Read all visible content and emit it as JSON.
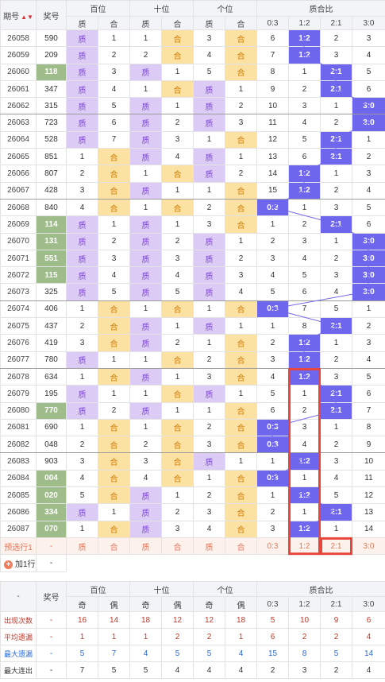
{
  "header": {
    "issue": "期号",
    "sort_icon": "▲▼",
    "prize": "奖号",
    "hundreds": "百位",
    "tens": "十位",
    "units": "个位",
    "ratio": "质合比",
    "zhi": "质",
    "he": "合",
    "ratios": [
      "0:3",
      "1:2",
      "2:1",
      "3:0"
    ]
  },
  "rows": [
    {
      "issue": "26058",
      "prize": "590",
      "h": [
        "质",
        "1"
      ],
      "t": [
        "1",
        "合"
      ],
      "u": [
        "3",
        "合"
      ],
      "r": [
        "6",
        "1:2",
        "2",
        "3"
      ],
      "hit": 1,
      "g": false
    },
    {
      "issue": "26059",
      "prize": "209",
      "h": [
        "质",
        "2"
      ],
      "t": [
        "2",
        "合"
      ],
      "u": [
        "4",
        "合"
      ],
      "r": [
        "7",
        "1:2",
        "3",
        "4"
      ],
      "hit": 1,
      "g": false
    },
    {
      "issue": "26060",
      "prize": "118",
      "h": [
        "质",
        "3"
      ],
      "t": [
        "质",
        "1"
      ],
      "u": [
        "5",
        "合"
      ],
      "r": [
        "8",
        "1",
        "2:1",
        "5"
      ],
      "hit": 2,
      "g": true
    },
    {
      "issue": "26061",
      "prize": "347",
      "h": [
        "质",
        "4"
      ],
      "t": [
        "1",
        "合"
      ],
      "u": [
        "质",
        "1"
      ],
      "r": [
        "9",
        "2",
        "2:1",
        "6"
      ],
      "hit": 2,
      "g": false
    },
    {
      "issue": "26062",
      "prize": "315",
      "h": [
        "质",
        "5"
      ],
      "t": [
        "质",
        "1"
      ],
      "u": [
        "质",
        "2"
      ],
      "r": [
        "10",
        "3",
        "1",
        "3:0"
      ],
      "hit": 3,
      "g": false
    },
    {
      "issue": "26063",
      "prize": "723",
      "h": [
        "质",
        "6"
      ],
      "t": [
        "质",
        "2"
      ],
      "u": [
        "质",
        "3"
      ],
      "r": [
        "11",
        "4",
        "2",
        "3:0"
      ],
      "hit": 3,
      "g": false
    },
    {
      "issue": "26064",
      "prize": "528",
      "h": [
        "质",
        "7"
      ],
      "t": [
        "质",
        "3"
      ],
      "u": [
        "1",
        "合"
      ],
      "r": [
        "12",
        "5",
        "2:1",
        "1"
      ],
      "hit": 2,
      "g": false
    },
    {
      "issue": "26065",
      "prize": "851",
      "h": [
        "1",
        "合"
      ],
      "t": [
        "质",
        "4"
      ],
      "u": [
        "质",
        "1"
      ],
      "r": [
        "13",
        "6",
        "2:1",
        "2"
      ],
      "hit": 2,
      "g": false
    },
    {
      "issue": "26066",
      "prize": "807",
      "h": [
        "2",
        "合"
      ],
      "t": [
        "1",
        "合"
      ],
      "u": [
        "质",
        "2"
      ],
      "r": [
        "14",
        "1:2",
        "1",
        "3"
      ],
      "hit": 1,
      "g": false
    },
    {
      "issue": "26067",
      "prize": "428",
      "h": [
        "3",
        "合"
      ],
      "t": [
        "质",
        "1"
      ],
      "u": [
        "1",
        "合"
      ],
      "r": [
        "15",
        "1:2",
        "2",
        "4"
      ],
      "hit": 1,
      "g": false
    },
    {
      "issue": "26068",
      "prize": "840",
      "h": [
        "4",
        "合"
      ],
      "t": [
        "1",
        "合"
      ],
      "u": [
        "2",
        "合"
      ],
      "r": [
        "0:3",
        "1",
        "3",
        "5"
      ],
      "hit": 0,
      "g": false
    },
    {
      "issue": "26069",
      "prize": "114",
      "h": [
        "质",
        "1"
      ],
      "t": [
        "质",
        "1"
      ],
      "u": [
        "3",
        "合"
      ],
      "r": [
        "1",
        "2",
        "2:1",
        "6"
      ],
      "hit": 2,
      "g": true
    },
    {
      "issue": "26070",
      "prize": "131",
      "h": [
        "质",
        "2"
      ],
      "t": [
        "质",
        "2"
      ],
      "u": [
        "质",
        "1"
      ],
      "r": [
        "2",
        "3",
        "1",
        "3:0"
      ],
      "hit": 3,
      "g": true
    },
    {
      "issue": "26071",
      "prize": "551",
      "h": [
        "质",
        "3"
      ],
      "t": [
        "质",
        "3"
      ],
      "u": [
        "质",
        "2"
      ],
      "r": [
        "3",
        "4",
        "2",
        "3:0"
      ],
      "hit": 3,
      "g": true
    },
    {
      "issue": "26072",
      "prize": "115",
      "h": [
        "质",
        "4"
      ],
      "t": [
        "质",
        "4"
      ],
      "u": [
        "质",
        "3"
      ],
      "r": [
        "4",
        "5",
        "3",
        "3:0"
      ],
      "hit": 3,
      "g": true
    },
    {
      "issue": "26073",
      "prize": "325",
      "h": [
        "质",
        "5"
      ],
      "t": [
        "质",
        "5"
      ],
      "u": [
        "质",
        "4"
      ],
      "r": [
        "5",
        "6",
        "4",
        "3:0"
      ],
      "hit": 3,
      "g": false
    },
    {
      "issue": "26074",
      "prize": "406",
      "h": [
        "1",
        "合"
      ],
      "t": [
        "1",
        "合"
      ],
      "u": [
        "1",
        "合"
      ],
      "r": [
        "0:3",
        "7",
        "5",
        "1"
      ],
      "hit": 0,
      "g": false
    },
    {
      "issue": "26075",
      "prize": "437",
      "h": [
        "2",
        "合"
      ],
      "t": [
        "质",
        "1"
      ],
      "u": [
        "质",
        "1"
      ],
      "r": [
        "1",
        "8",
        "2:1",
        "2"
      ],
      "hit": 2,
      "g": false
    },
    {
      "issue": "26076",
      "prize": "419",
      "h": [
        "3",
        "合"
      ],
      "t": [
        "质",
        "2"
      ],
      "u": [
        "1",
        "合"
      ],
      "r": [
        "2",
        "1:2",
        "1",
        "3"
      ],
      "hit": 1,
      "g": false
    },
    {
      "issue": "26077",
      "prize": "780",
      "h": [
        "质",
        "1"
      ],
      "t": [
        "1",
        "合"
      ],
      "u": [
        "2",
        "合"
      ],
      "r": [
        "3",
        "1:2",
        "2",
        "4"
      ],
      "hit": 1,
      "g": false
    },
    {
      "issue": "26078",
      "prize": "634",
      "h": [
        "1",
        "合"
      ],
      "t": [
        "质",
        "1"
      ],
      "u": [
        "3",
        "合"
      ],
      "r": [
        "4",
        "1:2",
        "3",
        "5"
      ],
      "hit": 1,
      "g": false
    },
    {
      "issue": "26079",
      "prize": "195",
      "h": [
        "质",
        "1"
      ],
      "t": [
        "1",
        "合"
      ],
      "u": [
        "质",
        "1"
      ],
      "r": [
        "5",
        "1",
        "2:1",
        "6"
      ],
      "hit": 2,
      "g": false
    },
    {
      "issue": "26080",
      "prize": "770",
      "h": [
        "质",
        "2"
      ],
      "t": [
        "质",
        "1"
      ],
      "u": [
        "1",
        "合"
      ],
      "r": [
        "6",
        "2",
        "2:1",
        "7"
      ],
      "hit": 2,
      "g": true
    },
    {
      "issue": "26081",
      "prize": "690",
      "h": [
        "1",
        "合"
      ],
      "t": [
        "1",
        "合"
      ],
      "u": [
        "2",
        "合"
      ],
      "r": [
        "0:3",
        "3",
        "1",
        "8"
      ],
      "hit": 0,
      "g": false
    },
    {
      "issue": "26082",
      "prize": "048",
      "h": [
        "2",
        "合"
      ],
      "t": [
        "2",
        "合"
      ],
      "u": [
        "3",
        "合"
      ],
      "r": [
        "0:3",
        "4",
        "2",
        "9"
      ],
      "hit": 0,
      "g": false
    },
    {
      "issue": "26083",
      "prize": "903",
      "h": [
        "3",
        "合"
      ],
      "t": [
        "3",
        "合"
      ],
      "u": [
        "质",
        "1"
      ],
      "r": [
        "1",
        "1:2",
        "3",
        "10"
      ],
      "hit": 1,
      "g": false
    },
    {
      "issue": "26084",
      "prize": "004",
      "h": [
        "4",
        "合"
      ],
      "t": [
        "4",
        "合"
      ],
      "u": [
        "1",
        "合"
      ],
      "r": [
        "0:3",
        "1",
        "4",
        "11"
      ],
      "hit": 0,
      "g": true
    },
    {
      "issue": "26085",
      "prize": "020",
      "h": [
        "5",
        "合"
      ],
      "t": [
        "质",
        "1"
      ],
      "u": [
        "2",
        "合"
      ],
      "r": [
        "1",
        "1:2",
        "5",
        "12"
      ],
      "hit": 1,
      "g": true
    },
    {
      "issue": "26086",
      "prize": "334",
      "h": [
        "质",
        "1"
      ],
      "t": [
        "质",
        "2"
      ],
      "u": [
        "3",
        "合"
      ],
      "r": [
        "2",
        "1",
        "2:1",
        "13"
      ],
      "hit": 2,
      "g": true
    },
    {
      "issue": "26087",
      "prize": "070",
      "h": [
        "1",
        "合"
      ],
      "t": [
        "质",
        "3"
      ],
      "u": [
        "4",
        "合"
      ],
      "r": [
        "3",
        "1:2",
        "1",
        "14"
      ],
      "hit": 1,
      "g": true
    }
  ],
  "prediction": {
    "label": "预选行1",
    "prize": "-",
    "cells": [
      "质",
      "合",
      "质",
      "合",
      "质",
      "合"
    ],
    "ratios": [
      "0:3",
      "1:2",
      "2:1",
      "3:0"
    ]
  },
  "add_row": {
    "icon": "+",
    "label": "加1行",
    "value": "-"
  },
  "stats": {
    "corner": "-",
    "prize": "奖号",
    "hundreds": "百位",
    "tens": "十位",
    "units": "个位",
    "ratio": "质合比",
    "odd": "奇",
    "even": "偶",
    "ratios": [
      "0:3",
      "1:2",
      "2:1",
      "3:0"
    ],
    "rows": [
      {
        "label": "出现次数",
        "dash": "-",
        "vals": [
          "16",
          "14",
          "18",
          "12",
          "12",
          "18",
          "5",
          "10",
          "9",
          "6"
        ],
        "color": "red"
      },
      {
        "label": "平均遗漏",
        "dash": "-",
        "vals": [
          "1",
          "1",
          "1",
          "2",
          "2",
          "1",
          "6",
          "2",
          "2",
          "4"
        ],
        "color": "red"
      },
      {
        "label": "最大遗漏",
        "dash": "-",
        "vals": [
          "5",
          "7",
          "4",
          "5",
          "5",
          "4",
          "15",
          "8",
          "5",
          "14"
        ],
        "color": "blue"
      },
      {
        "label": "最大连出",
        "dash": "-",
        "vals": [
          "7",
          "5",
          "5",
          "4",
          "4",
          "4",
          "2",
          "3",
          "2",
          "4"
        ],
        "color": "dark"
      }
    ]
  },
  "colors": {
    "zhi_bg": "#dccbf5",
    "he_bg": "#fbe2a2",
    "hit_bg": "#6f66ee",
    "highlight_box": "#e8453c",
    "green_prize": "#9fbd8a"
  }
}
